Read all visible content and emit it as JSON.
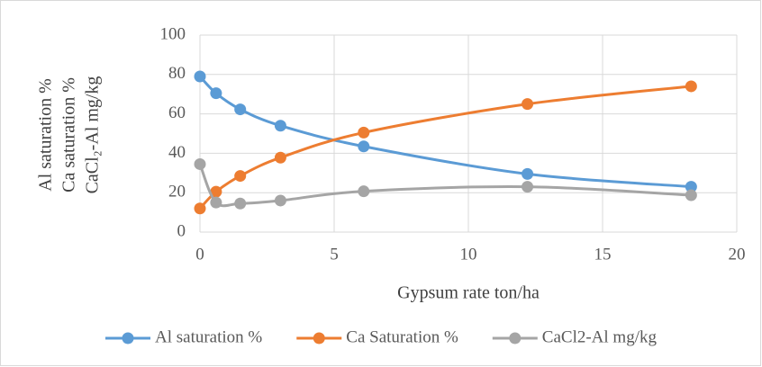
{
  "chart_data": {
    "type": "line",
    "y_label": [
      "Al saturation %",
      "Ca saturation %",
      "CaCl₂-Al mg/kg"
    ],
    "x_label": "Gypsum rate ton/ha",
    "x": [
      0,
      0.6,
      1.5,
      3,
      6.1,
      12.2,
      18.3
    ],
    "series": [
      {
        "name": "Al saturation %",
        "color": "#5b9bd5",
        "values": [
          79,
          70.5,
          62.3,
          54,
          43.5,
          29.5,
          23
        ]
      },
      {
        "name": "Ca Saturation %",
        "color": "#ed7d31",
        "values": [
          12,
          20.5,
          28.5,
          37.8,
          50.5,
          65,
          74
        ]
      },
      {
        "name": "CaCl2-Al mg/kg",
        "color": "#a5a5a5",
        "values": [
          34.5,
          15,
          14.5,
          16,
          20.7,
          23,
          18.7
        ]
      }
    ],
    "xlim": [
      0,
      20
    ],
    "xticks": [
      0,
      5,
      10,
      15,
      20
    ],
    "ylim": [
      0,
      100
    ],
    "yticks": [
      0,
      20,
      40,
      60,
      80,
      100
    ],
    "grid": true,
    "smooth": true,
    "legend": "bottom"
  }
}
